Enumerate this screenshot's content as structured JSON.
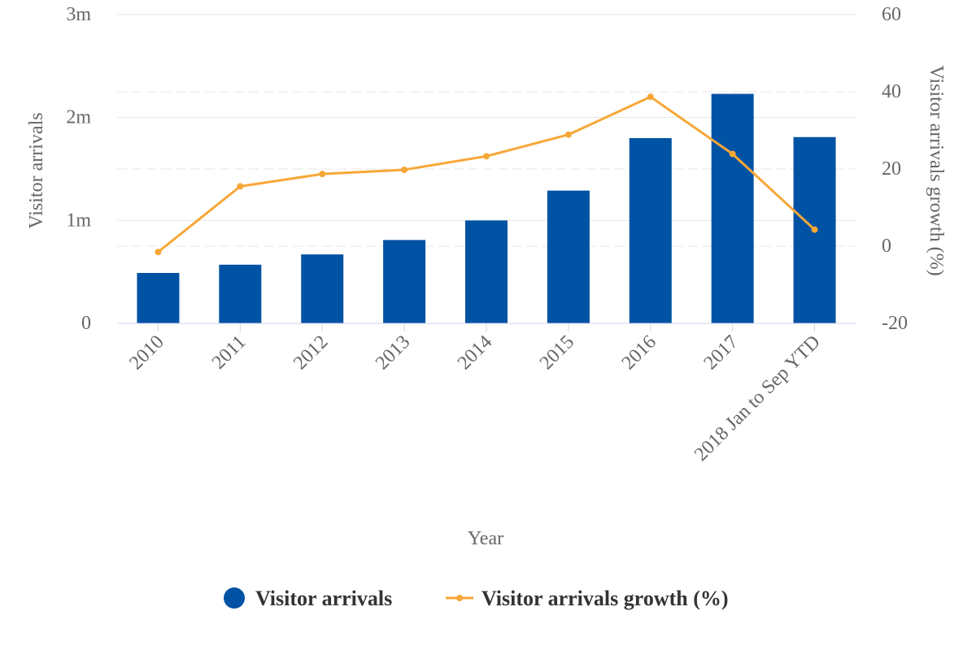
{
  "chart_data": {
    "type": "bar",
    "categories": [
      "2010",
      "2011",
      "2012",
      "2013",
      "2014",
      "2015",
      "2016",
      "2017",
      "2018 Jan to Sep YTD"
    ],
    "xlabel": "Year",
    "ylabel": "Visitor arrivals",
    "ylabel_right": "Visitor arrivals growth (%)",
    "ylim": [
      0,
      3000000
    ],
    "ylim_right": [
      -20,
      60
    ],
    "y_ticks": [
      "0",
      "1m",
      "2m",
      "3m"
    ],
    "y_ticks_right": [
      "-20",
      "0",
      "20",
      "40",
      "60"
    ],
    "grid": true,
    "legend_position": "bottom",
    "series": [
      {
        "name": "Visitor arrivals",
        "type": "bar",
        "axis": "left",
        "color": "#0052A5",
        "values": [
          490000,
          570000,
          670000,
          810000,
          1000000,
          1290000,
          1800000,
          2230000,
          1810000
        ]
      },
      {
        "name": "Visitor arrivals growth (%)",
        "type": "line",
        "axis": "right",
        "color": "#F7A737",
        "values": [
          -1.5,
          15.5,
          18.7,
          19.8,
          23.3,
          28.9,
          38.7,
          23.9,
          4.3
        ]
      }
    ]
  }
}
